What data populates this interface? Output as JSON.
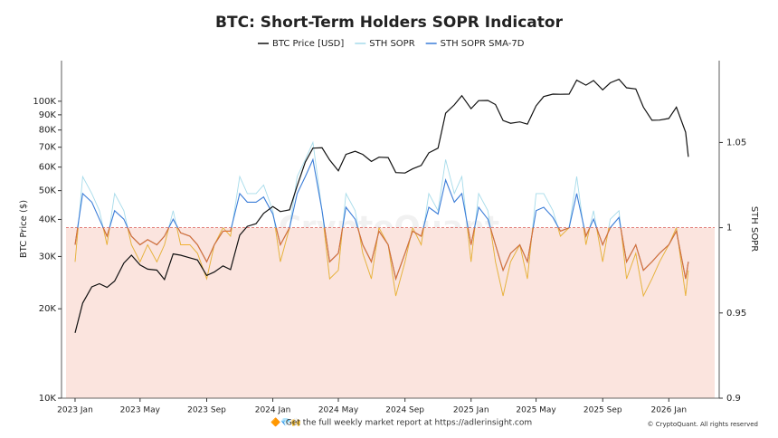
{
  "chart_data": {
    "type": "line",
    "title": "BTC: Short-Term Holders SOPR Indicator",
    "y_label": "BTC Price ($)",
    "y2_label": "STH SOPR",
    "watermark": "CryptoQuant",
    "footer": "Get the full weekly market report at https://adlerinsight.com",
    "footer_icons": "🔶💎🙌",
    "copyright": "© CryptoQuant. All rights reserved",
    "log_y": true,
    "below_fill": "#fbe4de",
    "reference_color": "#d9534f",
    "x": [
      "2023-01-01",
      "2023-01-15",
      "2023-02-01",
      "2023-02-15",
      "2023-03-01",
      "2023-03-15",
      "2023-04-01",
      "2023-04-15",
      "2023-05-01",
      "2023-05-15",
      "2023-06-01",
      "2023-06-15",
      "2023-07-01",
      "2023-07-15",
      "2023-08-01",
      "2023-08-15",
      "2023-09-01",
      "2023-09-15",
      "2023-10-01",
      "2023-10-15",
      "2023-11-01",
      "2023-11-15",
      "2023-12-01",
      "2023-12-15",
      "2024-01-01",
      "2024-01-15",
      "2024-02-01",
      "2024-02-15",
      "2024-03-01",
      "2024-03-15",
      "2024-04-01",
      "2024-04-15",
      "2024-05-01",
      "2024-05-15",
      "2024-06-01",
      "2024-06-15",
      "2024-07-01",
      "2024-07-15",
      "2024-08-01",
      "2024-08-15",
      "2024-09-01",
      "2024-09-15",
      "2024-10-01",
      "2024-10-15",
      "2024-11-01",
      "2024-11-15",
      "2024-12-01",
      "2024-12-15",
      "2025-01-01",
      "2025-01-15",
      "2025-02-01",
      "2025-02-15",
      "2025-03-01",
      "2025-03-15",
      "2025-04-01",
      "2025-04-15",
      "2025-05-01",
      "2025-05-15",
      "2025-06-01",
      "2025-06-15",
      "2025-07-01",
      "2025-07-15",
      "2025-08-01",
      "2025-08-15",
      "2025-09-01",
      "2025-09-15",
      "2025-10-01",
      "2025-10-15",
      "2025-11-01",
      "2025-11-15",
      "2025-12-01",
      "2025-12-15",
      "2026-01-01",
      "2026-01-15",
      "2026-02-01",
      "2026-02-06"
    ],
    "xlim": [
      "2022-12-07",
      "2026-04-04"
    ],
    "xticks": [
      {
        "value": "2023-01-01",
        "label": "2023 Jan"
      },
      {
        "value": "2023-05-01",
        "label": "2023 May"
      },
      {
        "value": "2023-09-01",
        "label": "2023 Sep"
      },
      {
        "value": "2024-01-01",
        "label": "2024 Jan"
      },
      {
        "value": "2024-05-01",
        "label": "2024 May"
      },
      {
        "value": "2024-09-01",
        "label": "2024 Sep"
      },
      {
        "value": "2025-01-01",
        "label": "2025 Jan"
      },
      {
        "value": "2025-05-01",
        "label": "2025 May"
      },
      {
        "value": "2025-09-01",
        "label": "2025 Sep"
      },
      {
        "value": "2026-01-01",
        "label": "2026 Jan"
      }
    ],
    "ylim": [
      10000,
      137000
    ],
    "yticks": [
      {
        "value": 10000,
        "label": "10K"
      },
      {
        "value": 20000,
        "label": "20K"
      },
      {
        "value": 30000,
        "label": "30K"
      },
      {
        "value": 40000,
        "label": "40K"
      },
      {
        "value": 50000,
        "label": "50K"
      },
      {
        "value": 60000,
        "label": "60K"
      },
      {
        "value": 70000,
        "label": "70K"
      },
      {
        "value": 80000,
        "label": "80K"
      },
      {
        "value": 90000,
        "label": "90K"
      },
      {
        "value": 100000,
        "label": "100K"
      }
    ],
    "y2lim": [
      0.9,
      1.098
    ],
    "y2ticks": [
      0.9,
      0.95,
      1,
      1.05
    ],
    "series": [
      {
        "name": "BTC Price [USD]",
        "color": "#111111",
        "values": [
          16600,
          20900,
          23700,
          24300,
          23600,
          24800,
          28500,
          30300,
          28100,
          27200,
          27000,
          25100,
          30600,
          30300,
          29700,
          29200,
          25900,
          26600,
          27900,
          27100,
          35400,
          37900,
          38700,
          41900,
          44200,
          42500,
          43100,
          51900,
          62400,
          69500,
          69700,
          63400,
          58300,
          66200,
          67800,
          66200,
          62700,
          64800,
          64600,
          57500,
          57300,
          59200,
          60800,
          67000,
          69500,
          91100,
          97200,
          104400,
          94400,
          100500,
          100600,
          97500,
          86100,
          84300,
          85200,
          83700,
          96500,
          103700,
          105700,
          105500,
          105700,
          117700,
          113300,
          117400,
          109200,
          115400,
          118600,
          111000,
          110000,
          95500,
          86300,
          86400,
          87500,
          95500,
          78600,
          65000
        ]
      },
      {
        "name": "STH SOPR",
        "color": "#a6dbea",
        "color_below": "#f2b030",
        "axis": "y2",
        "values": [
          0.98,
          1.03,
          1.02,
          1.01,
          0.99,
          1.02,
          1.01,
          0.99,
          0.98,
          0.99,
          0.98,
          0.99,
          1.01,
          0.99,
          0.99,
          0.985,
          0.97,
          0.99,
          1.0,
          0.995,
          1.03,
          1.02,
          1.02,
          1.025,
          1.01,
          0.98,
          1.0,
          1.03,
          1.04,
          1.05,
          1.01,
          0.97,
          0.975,
          1.02,
          1.01,
          0.985,
          0.97,
          1.0,
          0.99,
          0.96,
          0.98,
          1.0,
          0.99,
          1.02,
          1.01,
          1.04,
          1.02,
          1.03,
          0.98,
          1.02,
          1.01,
          0.98,
          0.96,
          0.98,
          0.99,
          0.97,
          1.02,
          1.02,
          1.01,
          0.995,
          1.0,
          1.03,
          0.99,
          1.01,
          0.98,
          1.005,
          1.01,
          0.97,
          0.985,
          0.96,
          0.97,
          0.98,
          0.99,
          1.0,
          0.96,
          0.975
        ]
      },
      {
        "name": "STH SOPR SMA-7D",
        "color": "#3b7dd8",
        "color_below": "#e0702e",
        "axis": "y2",
        "values": [
          0.99,
          1.02,
          1.015,
          1.005,
          0.995,
          1.01,
          1.005,
          0.995,
          0.99,
          0.993,
          0.99,
          0.995,
          1.005,
          0.997,
          0.995,
          0.99,
          0.98,
          0.99,
          0.998,
          0.998,
          1.02,
          1.015,
          1.015,
          1.018,
          1.008,
          0.99,
          1.0,
          1.02,
          1.03,
          1.04,
          1.01,
          0.98,
          0.985,
          1.012,
          1.005,
          0.99,
          0.98,
          0.998,
          0.99,
          0.97,
          0.985,
          0.998,
          0.995,
          1.012,
          1.008,
          1.028,
          1.015,
          1.02,
          0.99,
          1.012,
          1.005,
          0.99,
          0.975,
          0.985,
          0.99,
          0.98,
          1.01,
          1.012,
          1.006,
          0.998,
          1.0,
          1.02,
          0.995,
          1.005,
          0.99,
          1.0,
          1.006,
          0.98,
          0.99,
          0.975,
          0.98,
          0.985,
          0.99,
          0.998,
          0.97,
          0.98
        ]
      }
    ]
  }
}
